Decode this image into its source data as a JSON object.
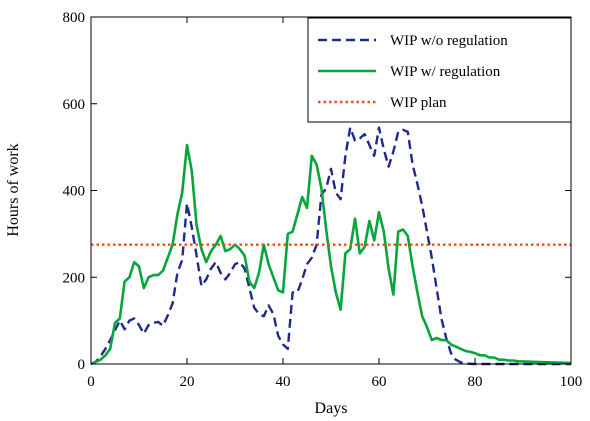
{
  "chart_data": {
    "type": "line",
    "xlabel": "Days",
    "ylabel": "Hours of work",
    "xlim": [
      0,
      100
    ],
    "ylim": [
      0,
      800
    ],
    "xticks": [
      0,
      20,
      40,
      60,
      80,
      100
    ],
    "yticks": [
      0,
      200,
      400,
      600,
      800
    ],
    "grid": false,
    "legend_position": "top-right",
    "series": [
      {
        "name": "WIP w/o regulation",
        "color": "#1f2a8c",
        "style": "dashed",
        "points": [
          [
            0,
            0
          ],
          [
            1,
            5
          ],
          [
            2,
            18
          ],
          [
            3,
            35
          ],
          [
            4,
            55
          ],
          [
            5,
            78
          ],
          [
            6,
            100
          ],
          [
            7,
            80
          ],
          [
            8,
            100
          ],
          [
            9,
            105
          ],
          [
            10,
            90
          ],
          [
            11,
            70
          ],
          [
            12,
            90
          ],
          [
            13,
            95
          ],
          [
            14,
            97
          ],
          [
            15,
            88
          ],
          [
            16,
            112
          ],
          [
            17,
            140
          ],
          [
            18,
            210
          ],
          [
            19,
            240
          ],
          [
            20,
            370
          ],
          [
            21,
            315
          ],
          [
            22,
            250
          ],
          [
            23,
            180
          ],
          [
            24,
            195
          ],
          [
            25,
            220
          ],
          [
            26,
            235
          ],
          [
            27,
            210
          ],
          [
            28,
            195
          ],
          [
            29,
            210
          ],
          [
            30,
            230
          ],
          [
            31,
            235
          ],
          [
            32,
            220
          ],
          [
            33,
            175
          ],
          [
            34,
            130
          ],
          [
            35,
            115
          ],
          [
            36,
            110
          ],
          [
            37,
            135
          ],
          [
            38,
            115
          ],
          [
            39,
            65
          ],
          [
            40,
            45
          ],
          [
            41,
            35
          ],
          [
            42,
            165
          ],
          [
            43,
            165
          ],
          [
            44,
            195
          ],
          [
            45,
            230
          ],
          [
            46,
            245
          ],
          [
            47,
            275
          ],
          [
            48,
            390
          ],
          [
            49,
            405
          ],
          [
            50,
            450
          ],
          [
            51,
            395
          ],
          [
            52,
            380
          ],
          [
            53,
            480
          ],
          [
            54,
            545
          ],
          [
            55,
            515
          ],
          [
            56,
            520
          ],
          [
            57,
            530
          ],
          [
            58,
            505
          ],
          [
            59,
            480
          ],
          [
            60,
            545
          ],
          [
            61,
            495
          ],
          [
            62,
            455
          ],
          [
            63,
            490
          ],
          [
            64,
            535
          ],
          [
            65,
            540
          ],
          [
            66,
            535
          ],
          [
            67,
            460
          ],
          [
            68,
            415
          ],
          [
            69,
            365
          ],
          [
            70,
            305
          ],
          [
            71,
            245
          ],
          [
            72,
            175
          ],
          [
            73,
            105
          ],
          [
            74,
            60
          ],
          [
            75,
            25
          ],
          [
            76,
            10
          ],
          [
            77,
            4
          ],
          [
            78,
            1
          ],
          [
            80,
            0
          ],
          [
            85,
            0
          ],
          [
            90,
            0
          ],
          [
            95,
            0
          ],
          [
            100,
            0
          ]
        ]
      },
      {
        "name": "WIP w/ regulation",
        "color": "#0aa53a",
        "style": "solid",
        "points": [
          [
            0,
            0
          ],
          [
            1,
            5
          ],
          [
            2,
            10
          ],
          [
            3,
            20
          ],
          [
            4,
            35
          ],
          [
            5,
            95
          ],
          [
            6,
            105
          ],
          [
            7,
            190
          ],
          [
            8,
            200
          ],
          [
            9,
            235
          ],
          [
            10,
            225
          ],
          [
            11,
            175
          ],
          [
            12,
            200
          ],
          [
            13,
            205
          ],
          [
            14,
            205
          ],
          [
            15,
            215
          ],
          [
            16,
            245
          ],
          [
            17,
            275
          ],
          [
            18,
            345
          ],
          [
            19,
            395
          ],
          [
            20,
            505
          ],
          [
            21,
            445
          ],
          [
            22,
            320
          ],
          [
            23,
            265
          ],
          [
            24,
            235
          ],
          [
            25,
            260
          ],
          [
            26,
            275
          ],
          [
            27,
            295
          ],
          [
            28,
            260
          ],
          [
            29,
            265
          ],
          [
            30,
            275
          ],
          [
            31,
            265
          ],
          [
            32,
            250
          ],
          [
            33,
            190
          ],
          [
            34,
            175
          ],
          [
            35,
            210
          ],
          [
            36,
            275
          ],
          [
            37,
            230
          ],
          [
            38,
            200
          ],
          [
            39,
            170
          ],
          [
            40,
            165
          ],
          [
            41,
            300
          ],
          [
            42,
            305
          ],
          [
            43,
            345
          ],
          [
            44,
            385
          ],
          [
            45,
            360
          ],
          [
            46,
            480
          ],
          [
            47,
            460
          ],
          [
            48,
            405
          ],
          [
            49,
            310
          ],
          [
            50,
            225
          ],
          [
            51,
            165
          ],
          [
            52,
            125
          ],
          [
            53,
            255
          ],
          [
            54,
            265
          ],
          [
            55,
            335
          ],
          [
            56,
            255
          ],
          [
            57,
            270
          ],
          [
            58,
            330
          ],
          [
            59,
            285
          ],
          [
            60,
            350
          ],
          [
            61,
            305
          ],
          [
            62,
            220
          ],
          [
            63,
            160
          ],
          [
            64,
            305
          ],
          [
            65,
            310
          ],
          [
            66,
            295
          ],
          [
            67,
            225
          ],
          [
            68,
            165
          ],
          [
            69,
            110
          ],
          [
            70,
            85
          ],
          [
            71,
            55
          ],
          [
            72,
            60
          ],
          [
            73,
            55
          ],
          [
            74,
            55
          ],
          [
            75,
            45
          ],
          [
            76,
            40
          ],
          [
            77,
            35
          ],
          [
            78,
            30
          ],
          [
            79,
            28
          ],
          [
            80,
            25
          ],
          [
            81,
            20
          ],
          [
            82,
            20
          ],
          [
            83,
            15
          ],
          [
            84,
            15
          ],
          [
            85,
            10
          ],
          [
            86,
            10
          ],
          [
            87,
            8
          ],
          [
            88,
            8
          ],
          [
            89,
            6
          ],
          [
            90,
            6
          ],
          [
            92,
            5
          ],
          [
            95,
            4
          ],
          [
            98,
            3
          ],
          [
            100,
            2
          ]
        ]
      },
      {
        "name": "WIP plan",
        "color": "#f04a1a",
        "style": "dotted",
        "points": [
          [
            0,
            275
          ],
          [
            100,
            275
          ]
        ]
      }
    ]
  }
}
